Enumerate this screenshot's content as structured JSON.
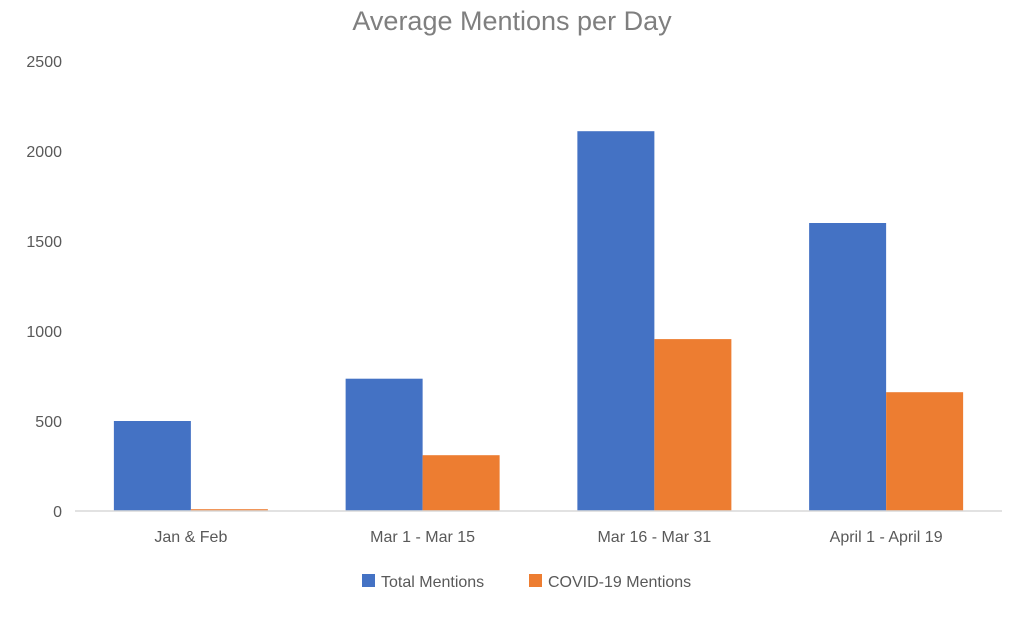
{
  "chart_data": {
    "type": "bar",
    "title": "Average Mentions per Day",
    "categories": [
      "Jan & Feb",
      "Mar 1 - Mar 15",
      "Mar 16 - Mar 31",
      "April 1 - April 19"
    ],
    "series": [
      {
        "name": "Total Mentions",
        "values": [
          500,
          735,
          2110,
          1600
        ],
        "color": "#4472c4"
      },
      {
        "name": "COVID-19 Mentions",
        "values": [
          10,
          310,
          955,
          660
        ],
        "color": "#ed7d31"
      }
    ],
    "yticks": [
      "0",
      "500",
      "1000",
      "1500",
      "2000",
      "2500"
    ],
    "ylim": [
      0,
      2500
    ],
    "grid": false,
    "legend_position": "bottom"
  }
}
